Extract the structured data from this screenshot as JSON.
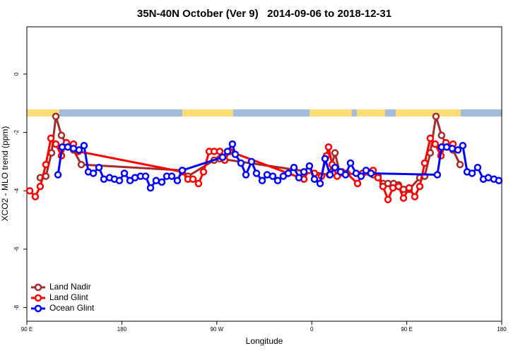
{
  "chart_data": {
    "type": "line",
    "title": "35N-40N October (Ver 9)   2014-09-06 to 2018-12-31",
    "xlabel": "Longitude",
    "ylabel": "XCO2 - MLO trend (ppm)",
    "xlim": [
      90,
      540
    ],
    "xticks": [
      {
        "value": 90,
        "label": "90 E"
      },
      180,
      {
        "value": 270,
        "label": "90 W"
      },
      {
        "value": 360,
        "label": "0"
      },
      {
        "value": 450,
        "label": "90 E"
      },
      180
    ],
    "ylim": [
      -8.47,
      1.62
    ],
    "yticks": [
      0,
      -2,
      -4,
      -6,
      -8
    ],
    "legend": "bottom-left",
    "series": [
      {
        "name": "Land Nadir",
        "color": "#a52a2a",
        "x": [
          102.7,
          108,
          113.4,
          117.5,
          122.8,
          128.8,
          134.2,
          141.6,
          237.3,
          242.7,
          267.5,
          272.8,
          376.6,
          382,
          386.6,
          418.1,
          422.8,
          427.5,
          432.2,
          437.5,
          442.2,
          446.9,
          452.3,
          462.3,
          467,
          472.3,
          477.7,
          483,
          488.4,
          493.8,
          500.5
        ],
        "values": [
          -3.55,
          -3.5,
          -2.7,
          -1.45,
          -2.1,
          -2.5,
          -2.6,
          -3.1,
          -3.3,
          -3.5,
          -2.95,
          -2.9,
          -3.45,
          -2.7,
          -3.4,
          -3.45,
          -3.5,
          -3.75,
          -3.75,
          -3.75,
          -3.8,
          -3.95,
          -3.95,
          -3.55,
          -3.5,
          -2.7,
          -1.45,
          -2.1,
          -2.5,
          -2.6,
          -3.1
        ]
      },
      {
        "name": "Land Glint",
        "color": "#ff0000",
        "x": [
          92.7,
          98,
          102.7,
          108,
          112.8,
          117.5,
          122.8,
          127.5,
          134.2,
          138.9,
          237.3,
          242.7,
          247.4,
          252.7,
          257.4,
          262.8,
          267.5,
          272.8,
          277.5,
          282.2,
          352.5,
          357.2,
          362.5,
          369.2,
          373.9,
          375.9,
          379.3,
          384,
          388.6,
          393.3,
          403.4,
          408.1,
          413.4,
          418.1,
          422.8,
          427.5,
          432.2,
          436.9,
          442.2,
          446.9,
          452.3,
          457.6,
          462.3,
          467,
          472.3,
          477,
          482.4,
          487.1,
          493.8
        ],
        "values": [
          -4.0,
          -4.2,
          -3.85,
          -3.1,
          -2.2,
          -2.4,
          -2.8,
          -2.35,
          -2.4,
          -2.65,
          -3.35,
          -3.6,
          -3.6,
          -3.75,
          -3.35,
          -2.65,
          -2.65,
          -2.65,
          -2.95,
          -2.65,
          -3.6,
          -3.3,
          -3.4,
          -3.5,
          -2.8,
          -2.5,
          -3.1,
          -3.5,
          -3.35,
          -3.4,
          -3.75,
          -3.4,
          -3.35,
          -3.3,
          -3.55,
          -3.85,
          -4.3,
          -3.9,
          -3.85,
          -4.25,
          -3.9,
          -4.2,
          -3.85,
          -3.05,
          -2.2,
          -2.4,
          -2.8,
          -2.35,
          -2.4
        ]
      },
      {
        "name": "Ocean Glint",
        "color": "#0000ff",
        "x": [
          119.5,
          123.5,
          128.8,
          134.2,
          139.5,
          144.2,
          148.3,
          153,
          158.3,
          163,
          168.4,
          173,
          177.7,
          182.4,
          187.8,
          192.5,
          197.8,
          202.5,
          207.2,
          212.5,
          217.9,
          222.6,
          227.3,
          232.6,
          237.3,
          275.5,
          280.2,
          284.8,
          287.5,
          292.9,
          297.6,
          302.9,
          307.6,
          313,
          317.7,
          323,
          327.7,
          333,
          337.7,
          343.1,
          347.8,
          352.5,
          357.8,
          362.5,
          367.9,
          372.6,
          377.3,
          382,
          387.3,
          392,
          396.7,
          402,
          406.7,
          411.4,
          416.1,
          479,
          483,
          487.8,
          493.1,
          498.5,
          503.1,
          507.2,
          511.9,
          517.2,
          522.6,
          527.3,
          532.6,
          537.3
        ],
        "values": [
          -3.45,
          -2.5,
          -2.5,
          -2.55,
          -2.6,
          -2.45,
          -3.35,
          -3.4,
          -3.2,
          -3.6,
          -3.55,
          -3.6,
          -3.65,
          -3.4,
          -3.65,
          -3.55,
          -3.5,
          -3.5,
          -3.9,
          -3.65,
          -3.7,
          -3.5,
          -3.5,
          -3.65,
          -3.3,
          -2.85,
          -2.65,
          -2.4,
          -2.75,
          -3.05,
          -3.45,
          -3.0,
          -3.4,
          -3.65,
          -3.45,
          -3.5,
          -3.65,
          -3.5,
          -3.4,
          -3.2,
          -3.55,
          -3.35,
          -3.15,
          -3.6,
          -3.75,
          -2.9,
          -3.45,
          -3.2,
          -3.35,
          -3.45,
          -3.05,
          -3.4,
          -3.5,
          -3.3,
          -3.4,
          -3.45,
          -2.5,
          -2.5,
          -2.55,
          -2.6,
          -2.45,
          -3.35,
          -3.4,
          -3.2,
          -3.6,
          -3.55,
          -3.6,
          -3.65
        ]
      }
    ]
  }
}
